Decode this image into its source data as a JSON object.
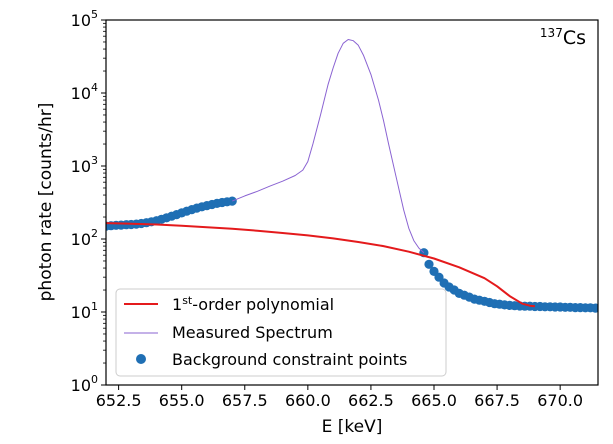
{
  "chart_data": {
    "type": "scatter",
    "annotation": {
      "mass_number": "137",
      "element": "Cs"
    },
    "xlabel": "E [keV]",
    "ylabel": "photon rate [counts/hr]",
    "xlim": [
      652,
      671.5
    ],
    "ylim": [
      1,
      100000
    ],
    "yscale": "log",
    "grid": false,
    "legend_position": "lower-left",
    "x_ticks": [
      {
        "value": 652.5,
        "label": "652.5"
      },
      {
        "value": 655.0,
        "label": "655.0"
      },
      {
        "value": 657.5,
        "label": "657.5"
      },
      {
        "value": 660.0,
        "label": "660.0"
      },
      {
        "value": 662.5,
        "label": "662.5"
      },
      {
        "value": 665.0,
        "label": "665.0"
      },
      {
        "value": 667.5,
        "label": "667.5"
      },
      {
        "value": 670.0,
        "label": "670.0"
      }
    ],
    "y_ticks": [
      {
        "value": 1,
        "base": "10",
        "exp": "0"
      },
      {
        "value": 10,
        "base": "10",
        "exp": "1"
      },
      {
        "value": 100,
        "base": "10",
        "exp": "2"
      },
      {
        "value": 1000,
        "base": "10",
        "exp": "3"
      },
      {
        "value": 10000,
        "base": "10",
        "exp": "4"
      },
      {
        "value": 100000,
        "base": "10",
        "exp": "5"
      }
    ],
    "series": [
      {
        "name": "Measured Spectrum",
        "kind": "line",
        "color": "#8a63d2",
        "x": [
          657.0,
          657.5,
          658.0,
          658.5,
          659.0,
          659.5,
          659.8,
          660.0,
          660.2,
          660.5,
          660.8,
          661.0,
          661.2,
          661.4,
          661.6,
          661.8,
          662.0,
          662.2,
          662.5,
          662.8,
          663.0,
          663.2,
          663.5,
          663.8,
          664.0,
          664.2,
          664.4,
          664.6
        ],
        "y": [
          330,
          390,
          450,
          530,
          620,
          740,
          880,
          1150,
          2000,
          5000,
          13000,
          22000,
          35000,
          48000,
          54000,
          52000,
          45000,
          33000,
          18000,
          8000,
          4200,
          2000,
          700,
          250,
          140,
          95,
          75,
          65
        ]
      },
      {
        "name": "1st-order polynomial",
        "name_main": "1",
        "name_sup": "st",
        "name_rest": "-order polynomial",
        "kind": "line",
        "color": "#e41a1c",
        "x": [
          652.0,
          653.0,
          654.0,
          655.0,
          656.0,
          657.0,
          658.0,
          659.0,
          660.0,
          661.0,
          662.0,
          663.0,
          664.0,
          665.0,
          666.0,
          667.0,
          667.5,
          668.0,
          668.5,
          668.8,
          669.0
        ],
        "y": [
          165,
          162,
          158,
          152,
          145,
          138,
          130,
          121,
          112,
          102,
          91,
          80,
          67,
          54,
          41,
          29,
          22.5,
          16.5,
          13,
          12.2,
          12
        ]
      },
      {
        "name": "Background constraint points",
        "kind": "scatter",
        "color": "#1f6fb4",
        "x": [
          652.0,
          652.2,
          652.4,
          652.6,
          652.8,
          653.0,
          653.2,
          653.4,
          653.6,
          653.8,
          654.0,
          654.2,
          654.4,
          654.6,
          654.8,
          655.0,
          655.2,
          655.4,
          655.6,
          655.8,
          656.0,
          656.2,
          656.4,
          656.6,
          656.8,
          657.0,
          664.6,
          664.8,
          665.0,
          665.2,
          665.4,
          665.6,
          665.8,
          666.0,
          666.2,
          666.4,
          666.6,
          666.8,
          667.0,
          667.2,
          667.4,
          667.6,
          667.8,
          668.0,
          668.2,
          668.4,
          668.6,
          668.8,
          669.0,
          669.2,
          669.4,
          669.6,
          669.8,
          670.0,
          670.2,
          670.4,
          670.6,
          670.8,
          671.0,
          671.2,
          671.4
        ],
        "y": [
          150,
          152,
          154,
          155,
          157,
          158,
          160,
          163,
          167,
          172,
          178,
          186,
          195,
          205,
          216,
          228,
          240,
          253,
          265,
          276,
          287,
          297,
          307,
          316,
          323,
          330,
          65,
          45,
          36,
          30,
          25,
          22,
          20,
          18,
          17,
          16,
          15,
          14.5,
          14,
          13.5,
          13,
          12.8,
          12.5,
          12.3,
          12.2,
          12.1,
          12.0,
          12.0,
          11.9,
          11.9,
          11.8,
          11.8,
          11.7,
          11.7,
          11.6,
          11.6,
          11.5,
          11.5,
          11.4,
          11.4,
          11.3
        ]
      }
    ]
  }
}
